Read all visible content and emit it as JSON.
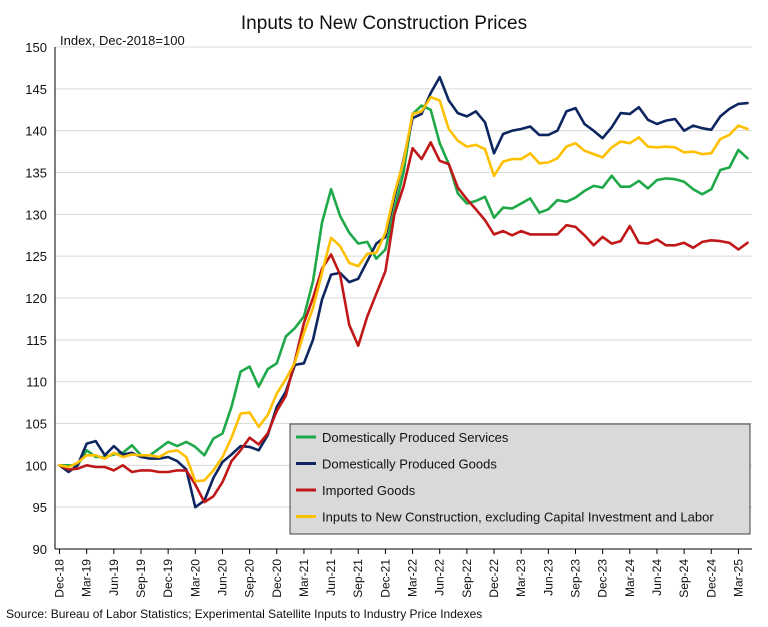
{
  "chart_data": {
    "type": "line",
    "title": "Inputs to New Construction Prices",
    "ylabel": "Index, Dec-2018=100",
    "xlabel": "",
    "ylim": [
      90,
      150
    ],
    "yticks": [
      90,
      95,
      100,
      105,
      110,
      115,
      120,
      125,
      130,
      135,
      140,
      145,
      150
    ],
    "grid": true,
    "legend_position": "bottom-right",
    "source": "Source: Bureau of Labor Statistics; Experimental Satellite Inputs to Industry Price Indexes",
    "tick_labels": [
      "Dec-18",
      "Mar-19",
      "Jun-19",
      "Sep-19",
      "Dec-19",
      "Mar-20",
      "Jun-20",
      "Sep-20",
      "Dec-20",
      "Mar-21",
      "Jun-21",
      "Sep-21",
      "Dec-21",
      "Mar-22",
      "Jun-22",
      "Sep-22",
      "Dec-22",
      "Mar-23",
      "Jun-23",
      "Sep-23",
      "Dec-23",
      "Mar-24",
      "Jun-24",
      "Sep-24",
      "Dec-24",
      "Mar-25"
    ],
    "x": [
      "Dec-18",
      "Jan-19",
      "Feb-19",
      "Mar-19",
      "Apr-19",
      "May-19",
      "Jun-19",
      "Jul-19",
      "Aug-19",
      "Sep-19",
      "Oct-19",
      "Nov-19",
      "Dec-19",
      "Jan-20",
      "Feb-20",
      "Mar-20",
      "Apr-20",
      "May-20",
      "Jun-20",
      "Jul-20",
      "Aug-20",
      "Sep-20",
      "Oct-20",
      "Nov-20",
      "Dec-20",
      "Jan-21",
      "Feb-21",
      "Mar-21",
      "Apr-21",
      "May-21",
      "Jun-21",
      "Jul-21",
      "Aug-21",
      "Sep-21",
      "Oct-21",
      "Nov-21",
      "Dec-21",
      "Jan-22",
      "Feb-22",
      "Mar-22",
      "Apr-22",
      "May-22",
      "Jun-22",
      "Jul-22",
      "Aug-22",
      "Sep-22",
      "Oct-22",
      "Nov-22",
      "Dec-22",
      "Jan-23",
      "Feb-23",
      "Mar-23",
      "Apr-23",
      "May-23",
      "Jun-23",
      "Jul-23",
      "Aug-23",
      "Sep-23",
      "Oct-23",
      "Nov-23",
      "Dec-23",
      "Jan-24",
      "Feb-24",
      "Mar-24",
      "Apr-24",
      "May-24",
      "Jun-24",
      "Jul-24",
      "Aug-24",
      "Sep-24",
      "Oct-24",
      "Nov-24",
      "Dec-24",
      "Jan-25",
      "Feb-25",
      "Mar-25",
      "Apr-25"
    ],
    "series": [
      {
        "name": "Domestically Produced Services",
        "color": "#1fa848",
        "values": [
          100.0,
          100.0,
          100.0,
          101.8,
          101.0,
          101.0,
          101.3,
          101.5,
          102.4,
          101.2,
          101.2,
          102.0,
          102.8,
          102.3,
          102.8,
          102.2,
          101.2,
          103.2,
          103.8,
          107.0,
          111.2,
          111.8,
          109.4,
          111.5,
          112.2,
          115.4,
          116.4,
          117.8,
          122.0,
          129.0,
          133.0,
          129.8,
          127.8,
          126.5,
          126.7,
          124.7,
          125.8,
          130.5,
          135.0,
          142.0,
          143.0,
          142.5,
          138.5,
          136.0,
          132.5,
          131.3,
          131.6,
          132.1,
          129.6,
          130.8,
          130.7,
          131.3,
          131.9,
          130.2,
          130.6,
          131.7,
          131.5,
          132.0,
          132.8,
          133.4,
          133.2,
          134.6,
          133.3,
          133.3,
          134.0,
          133.1,
          134.1,
          134.3,
          134.2,
          133.9,
          133.0,
          132.4,
          133.0,
          135.3,
          135.6,
          137.7,
          136.7
        ]
      },
      {
        "name": "Domestically Produced Goods",
        "color": "#0d2660",
        "values": [
          100.0,
          99.2,
          100.0,
          102.6,
          102.9,
          101.2,
          102.3,
          101.3,
          101.5,
          101.0,
          100.8,
          100.8,
          101.0,
          100.5,
          99.5,
          95.0,
          95.8,
          98.5,
          100.4,
          101.3,
          102.3,
          102.2,
          101.8,
          103.6,
          107.0,
          108.8,
          112.0,
          112.2,
          115.0,
          119.8,
          122.8,
          123.0,
          121.9,
          122.3,
          124.4,
          126.5,
          127.3,
          132.0,
          136.5,
          141.5,
          142.0,
          144.5,
          146.4,
          143.6,
          142.1,
          141.7,
          142.3,
          141.0,
          137.3,
          139.6,
          140.0,
          140.2,
          140.5,
          139.5,
          139.5,
          140.0,
          142.3,
          142.7,
          140.8,
          140.0,
          139.1,
          140.4,
          142.1,
          142.0,
          142.8,
          141.3,
          140.8,
          141.2,
          141.4,
          140.0,
          140.6,
          140.3,
          140.1,
          141.7,
          142.6,
          143.2,
          143.3
        ]
      },
      {
        "name": "Imported Goods",
        "color": "#c01818",
        "values": [
          100.0,
          99.5,
          99.6,
          100.0,
          99.8,
          99.8,
          99.4,
          100.0,
          99.2,
          99.4,
          99.4,
          99.2,
          99.2,
          99.4,
          99.4,
          97.7,
          95.6,
          96.3,
          98.0,
          100.5,
          101.8,
          103.3,
          102.5,
          103.8,
          106.5,
          108.3,
          112.5,
          117.0,
          120.0,
          123.5,
          125.2,
          122.8,
          116.8,
          114.3,
          117.8,
          120.5,
          123.2,
          130.0,
          133.3,
          137.9,
          136.6,
          138.6,
          136.4,
          136.0,
          133.2,
          131.8,
          130.6,
          129.3,
          127.6,
          128.0,
          127.5,
          128.0,
          127.6,
          127.6,
          127.6,
          127.6,
          128.7,
          128.5,
          127.5,
          126.3,
          127.3,
          126.5,
          126.8,
          128.6,
          126.6,
          126.5,
          127.0,
          126.3,
          126.3,
          126.6,
          126.0,
          126.7,
          126.9,
          126.8,
          126.6,
          125.8,
          126.6
        ]
      },
      {
        "name": "Inputs to New Construction, excluding Capital Investment and Labor",
        "color": "#ffc000",
        "values": [
          100.0,
          99.8,
          100.3,
          101.2,
          101.2,
          100.8,
          101.5,
          101.0,
          101.3,
          101.2,
          101.2,
          101.0,
          101.6,
          101.8,
          101.0,
          98.1,
          98.2,
          99.4,
          101.0,
          103.3,
          106.2,
          106.3,
          104.6,
          106.0,
          108.6,
          110.3,
          112.3,
          115.8,
          118.8,
          123.0,
          127.2,
          126.2,
          124.2,
          123.8,
          125.3,
          125.4,
          127.8,
          132.5,
          136.3,
          142.0,
          142.3,
          144.0,
          143.6,
          140.2,
          138.8,
          138.1,
          138.3,
          137.8,
          134.6,
          136.3,
          136.6,
          136.6,
          137.3,
          136.1,
          136.2,
          136.7,
          138.1,
          138.5,
          137.6,
          137.2,
          136.8,
          138.0,
          138.7,
          138.5,
          139.2,
          138.1,
          138.0,
          138.1,
          138.0,
          137.4,
          137.5,
          137.2,
          137.3,
          139.0,
          139.5,
          140.6,
          140.2
        ]
      }
    ]
  }
}
